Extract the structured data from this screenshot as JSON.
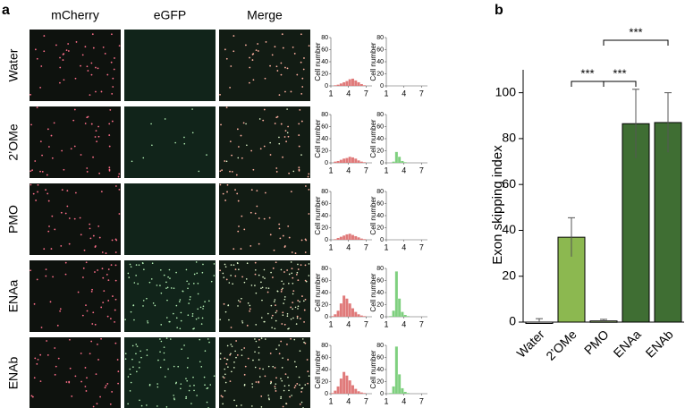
{
  "panel_a": {
    "label": "a",
    "columns": [
      "mCherry",
      "eGFP",
      "Merge"
    ],
    "rows": [
      "Water",
      "2’OMe",
      "PMO",
      "ENAa",
      "ENAb"
    ]
  },
  "panel_b": {
    "label": "b"
  },
  "chart_data": [
    {
      "type": "bar",
      "ylabel": "Exon skipping index",
      "categories": [
        "Water",
        "2’OMe",
        "PMO",
        "ENAa",
        "ENAb"
      ],
      "values": [
        0,
        37,
        0.5,
        86.5,
        87
      ],
      "errors": [
        1.5,
        8.5,
        0.7,
        15,
        13
      ],
      "colors": [
        "#ffffff",
        "#8cb850",
        "#a6c77a",
        "#3f6e33",
        "#3f6e33"
      ],
      "ylim": [
        0,
        110
      ],
      "yticks": [
        0,
        20,
        40,
        60,
        80,
        100
      ],
      "annotations": [
        {
          "text": "***",
          "from": 1,
          "to": 2
        },
        {
          "text": "***",
          "from": 2,
          "to": 3
        },
        {
          "text": "***",
          "from": 2,
          "to": 4
        }
      ]
    },
    {
      "type": "histogram",
      "ylabel": "Cell number",
      "color": "#e07a7a",
      "bins": [
        1,
        1.5,
        2,
        2.5,
        3,
        3.5,
        4,
        4.5,
        5,
        5.5,
        6,
        6.5,
        7,
        7.5,
        8
      ],
      "values": [
        0,
        1,
        2,
        4,
        6,
        8,
        11,
        12,
        9,
        6,
        3,
        1,
        0,
        0
      ],
      "ylim": [
        0,
        80
      ],
      "yticks": [
        0,
        20,
        40,
        60,
        80
      ],
      "xlim": [
        1,
        8
      ],
      "xticks": [
        1,
        4,
        7
      ]
    },
    {
      "type": "histogram",
      "ylabel": "Cell number",
      "color": "#7fd07f",
      "bins": [
        1,
        1.5,
        2,
        2.5,
        3,
        3.5,
        4,
        4.5,
        5,
        5.5,
        6,
        6.5,
        7,
        7.5,
        8
      ],
      "values": [
        0,
        0,
        0,
        0,
        0,
        0,
        0,
        0,
        0,
        0,
        0,
        0,
        0,
        0
      ],
      "ylim": [
        0,
        80
      ],
      "yticks": [
        0,
        20,
        40,
        60,
        80
      ],
      "xlim": [
        1,
        8
      ],
      "xticks": [
        1,
        4,
        7
      ]
    },
    {
      "type": "histogram",
      "ylabel": "Cell number",
      "color": "#e07a7a",
      "bins": [
        1,
        1.5,
        2,
        2.5,
        3,
        3.5,
        4,
        4.5,
        5,
        5.5,
        6,
        6.5,
        7,
        7.5,
        8
      ],
      "values": [
        0,
        2,
        3,
        5,
        7,
        8,
        10,
        9,
        7,
        4,
        2,
        1,
        0,
        0
      ],
      "ylim": [
        0,
        80
      ],
      "yticks": [
        0,
        20,
        40,
        60,
        80
      ],
      "xlim": [
        1,
        8
      ],
      "xticks": [
        1,
        4,
        7
      ]
    },
    {
      "type": "histogram",
      "ylabel": "Cell number",
      "color": "#7fd07f",
      "bins": [
        1,
        1.5,
        2,
        2.5,
        3,
        3.5,
        4,
        4.5,
        5,
        5.5,
        6,
        6.5,
        7,
        7.5,
        8
      ],
      "values": [
        0,
        0,
        2,
        18,
        10,
        3,
        1,
        0,
        0,
        0,
        0,
        0,
        0,
        0
      ],
      "ylim": [
        0,
        80
      ],
      "yticks": [
        0,
        20,
        40,
        60,
        80
      ],
      "xlim": [
        1,
        8
      ],
      "xticks": [
        1,
        4,
        7
      ]
    },
    {
      "type": "histogram",
      "ylabel": "Cell number",
      "color": "#e07a7a",
      "bins": [
        1,
        1.5,
        2,
        2.5,
        3,
        3.5,
        4,
        4.5,
        5,
        5.5,
        6,
        6.5,
        7,
        7.5,
        8
      ],
      "values": [
        0,
        1,
        3,
        5,
        7,
        9,
        10,
        8,
        6,
        4,
        2,
        1,
        0,
        0
      ],
      "ylim": [
        0,
        80
      ],
      "yticks": [
        0,
        20,
        40,
        60,
        80
      ],
      "xlim": [
        1,
        8
      ],
      "xticks": [
        1,
        4,
        7
      ]
    },
    {
      "type": "histogram",
      "ylabel": "Cell number",
      "color": "#7fd07f",
      "bins": [
        1,
        1.5,
        2,
        2.5,
        3,
        3.5,
        4,
        4.5,
        5,
        5.5,
        6,
        6.5,
        7,
        7.5,
        8
      ],
      "values": [
        0,
        0,
        0,
        0,
        0,
        0,
        0,
        0,
        0,
        0,
        0,
        0,
        0,
        0
      ],
      "ylim": [
        0,
        80
      ],
      "yticks": [
        0,
        20,
        40,
        60,
        80
      ],
      "xlim": [
        1,
        8
      ],
      "xticks": [
        1,
        4,
        7
      ]
    },
    {
      "type": "histogram",
      "ylabel": "Cell number",
      "color": "#e07a7a",
      "bins": [
        1,
        1.5,
        2,
        2.5,
        3,
        3.5,
        4,
        4.5,
        5,
        5.5,
        6,
        6.5,
        7,
        7.5,
        8
      ],
      "values": [
        1,
        4,
        10,
        22,
        35,
        30,
        22,
        14,
        8,
        4,
        2,
        1,
        0,
        0
      ],
      "ylim": [
        0,
        80
      ],
      "yticks": [
        0,
        20,
        40,
        60,
        80
      ],
      "xlim": [
        1,
        8
      ],
      "xticks": [
        1,
        4,
        7
      ]
    },
    {
      "type": "histogram",
      "ylabel": "Cell number",
      "color": "#7fd07f",
      "bins": [
        1,
        1.5,
        2,
        2.5,
        3,
        3.5,
        4,
        4.5,
        5,
        5.5,
        6,
        6.5,
        7,
        7.5,
        8
      ],
      "values": [
        0,
        1,
        10,
        75,
        30,
        8,
        3,
        1,
        0,
        0,
        0,
        0,
        0,
        0
      ],
      "ylim": [
        0,
        80
      ],
      "yticks": [
        0,
        20,
        40,
        60,
        80
      ],
      "xlim": [
        1,
        8
      ],
      "xticks": [
        1,
        4,
        7
      ]
    },
    {
      "type": "histogram",
      "ylabel": "Cell number",
      "color": "#e07a7a",
      "bins": [
        1,
        1.5,
        2,
        2.5,
        3,
        3.5,
        4,
        4.5,
        5,
        5.5,
        6,
        6.5,
        7,
        7.5,
        8
      ],
      "values": [
        1,
        5,
        12,
        25,
        36,
        30,
        22,
        14,
        8,
        4,
        2,
        1,
        0,
        0
      ],
      "ylim": [
        0,
        80
      ],
      "yticks": [
        0,
        20,
        40,
        60,
        80
      ],
      "xlim": [
        1,
        8
      ],
      "xticks": [
        1,
        4,
        7
      ]
    },
    {
      "type": "histogram",
      "ylabel": "Cell number",
      "color": "#7fd07f",
      "bins": [
        1,
        1.5,
        2,
        2.5,
        3,
        3.5,
        4,
        4.5,
        5,
        5.5,
        6,
        6.5,
        7,
        7.5,
        8
      ],
      "values": [
        0,
        1,
        12,
        78,
        32,
        9,
        3,
        1,
        0,
        0,
        0,
        0,
        0,
        0
      ],
      "ylim": [
        0,
        80
      ],
      "yticks": [
        0,
        20,
        40,
        60,
        80
      ],
      "xlim": [
        1,
        8
      ],
      "xticks": [
        1,
        4,
        7
      ]
    }
  ]
}
